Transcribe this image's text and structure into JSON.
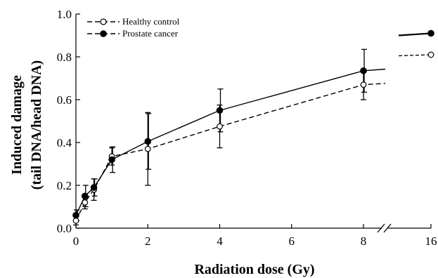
{
  "chart_data": {
    "type": "line",
    "xlabel": "Radiation dose (Gy)",
    "ylabel_line1": "Induced damage",
    "ylabel_line2": "(tail DNA/head DNA)",
    "ylim": [
      0.0,
      1.0
    ],
    "y_ticks": [
      "0.0",
      "0.2",
      "0.4",
      "0.6",
      "0.8",
      "1.0"
    ],
    "y_tick_values": [
      0.0,
      0.2,
      0.4,
      0.6,
      0.8,
      1.0
    ],
    "x_ticks": [
      "0",
      "2",
      "4",
      "6",
      "8",
      "16"
    ],
    "x_tick_values": [
      0,
      2,
      4,
      6,
      8,
      16
    ],
    "x_axis_break": "between 8 and 16",
    "grid": false,
    "legend_position": "top-left",
    "series": [
      {
        "name": "Healthy control",
        "marker": "open-circle",
        "line_style": "dashed",
        "x": [
          0,
          0.25,
          0.5,
          1,
          2,
          4,
          8,
          16
        ],
        "y": [
          0.035,
          0.12,
          0.18,
          0.335,
          0.37,
          0.475,
          0.67,
          0.81
        ],
        "err": [
          0.02,
          0.03,
          0.05,
          0.04,
          0.17,
          0.1,
          0.07,
          null
        ]
      },
      {
        "name": "Prostate cancer",
        "marker": "filled-circle",
        "line_style": "solid",
        "x": [
          0,
          0.25,
          0.5,
          1,
          2,
          4,
          8,
          16
        ],
        "y": [
          0.06,
          0.15,
          0.19,
          0.32,
          0.405,
          0.55,
          0.735,
          0.91
        ],
        "err": [
          0.025,
          0.05,
          0.04,
          0.06,
          0.13,
          0.1,
          0.1,
          null
        ]
      }
    ]
  }
}
